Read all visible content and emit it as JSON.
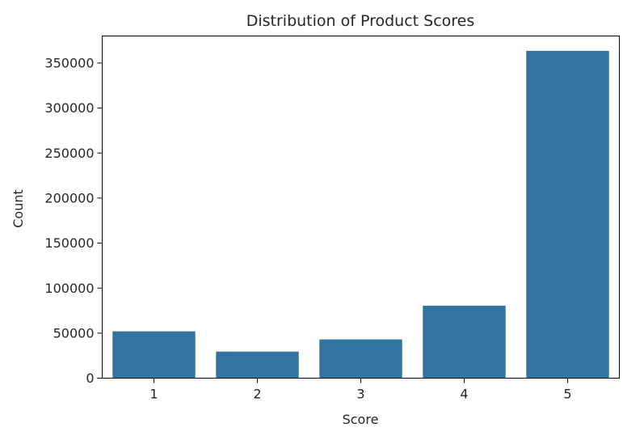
{
  "chart_data": {
    "type": "bar",
    "title": "Distribution of Product Scores",
    "xlabel": "Score",
    "ylabel": "Count",
    "categories": [
      "1",
      "2",
      "3",
      "4",
      "5"
    ],
    "values": [
      52000,
      29500,
      43000,
      80500,
      363500
    ],
    "ylim": [
      0,
      380000
    ],
    "yticks": [
      0,
      50000,
      100000,
      150000,
      200000,
      250000,
      300000,
      350000
    ],
    "ytick_labels": [
      "0",
      "50000",
      "100000",
      "150000",
      "200000",
      "250000",
      "300000",
      "350000"
    ],
    "bar_color": "#3274a1",
    "grid": false,
    "legend": false
  }
}
